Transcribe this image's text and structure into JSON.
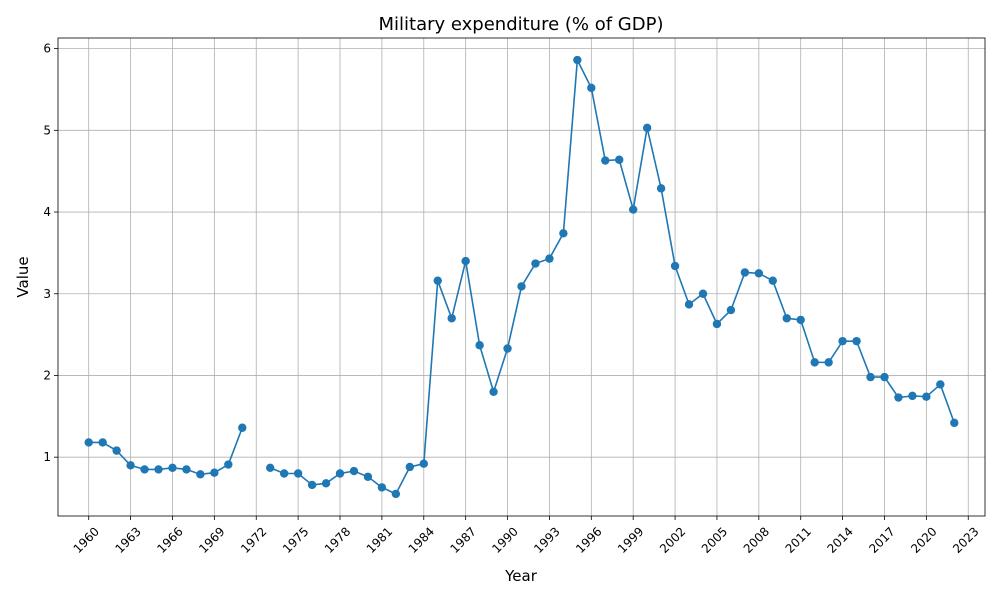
{
  "chart_data": {
    "type": "line",
    "title": "Military expenditure (% of GDP)",
    "xlabel": "Year",
    "ylabel": "Value",
    "xlim": [
      1957.8,
      2024.2
    ],
    "ylim": [
      0.28,
      6.13
    ],
    "grid": true,
    "xticks": [
      1960,
      1963,
      1966,
      1969,
      1972,
      1975,
      1978,
      1981,
      1984,
      1987,
      1990,
      1993,
      1996,
      1999,
      2002,
      2005,
      2008,
      2011,
      2014,
      2017,
      2020,
      2023
    ],
    "yticks": [
      1,
      2,
      3,
      4,
      5,
      6
    ],
    "color": "#1f77b4",
    "series": [
      {
        "name": "Military expenditure (% of GDP)",
        "x": [
          1960,
          1961,
          1962,
          1963,
          1964,
          1965,
          1966,
          1967,
          1968,
          1969,
          1970,
          1971,
          1972,
          1973,
          1974,
          1975,
          1976,
          1977,
          1978,
          1979,
          1980,
          1981,
          1982,
          1983,
          1984,
          1985,
          1986,
          1987,
          1988,
          1989,
          1990,
          1991,
          1992,
          1993,
          1994,
          1995,
          1996,
          1997,
          1998,
          1999,
          2000,
          2001,
          2002,
          2003,
          2004,
          2005,
          2006,
          2007,
          2008,
          2009,
          2010,
          2011,
          2012,
          2013,
          2014,
          2015,
          2016,
          2017,
          2018,
          2019,
          2020,
          2021,
          2022
        ],
        "values": [
          1.18,
          1.18,
          1.08,
          0.9,
          0.85,
          0.85,
          0.87,
          0.85,
          0.79,
          0.81,
          0.91,
          1.36,
          null,
          0.87,
          0.8,
          0.8,
          0.66,
          0.68,
          0.8,
          0.83,
          0.76,
          0.63,
          0.55,
          0.88,
          0.92,
          3.16,
          2.7,
          3.4,
          2.37,
          1.8,
          2.33,
          3.09,
          3.37,
          3.43,
          3.74,
          5.86,
          5.52,
          4.63,
          4.64,
          4.03,
          5.03,
          4.29,
          3.34,
          2.87,
          3.0,
          2.63,
          2.8,
          3.26,
          3.25,
          3.16,
          2.7,
          2.68,
          2.16,
          2.16,
          2.42,
          2.42,
          1.98,
          1.98,
          1.73,
          1.75,
          1.74,
          1.89,
          1.42
        ]
      }
    ]
  }
}
